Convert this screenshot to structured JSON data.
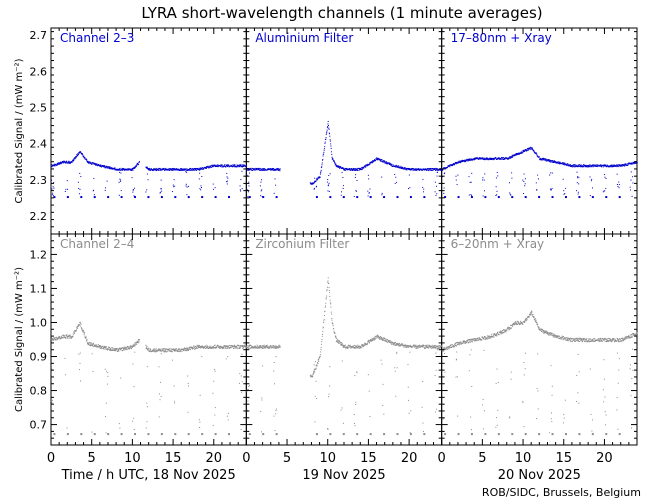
{
  "title": "LYRA short-wavelength channels (1 minute averages)",
  "credit": "ROB/SIDC, Brussels, Belgium",
  "ylabel": "Calibrated Signal / (mW m⁻²)",
  "colors": {
    "top": "#0000cc",
    "bottom": "#8c8c8c",
    "axis": "#000000"
  },
  "x_ticks": [
    "0",
    "5",
    "10",
    "15",
    "20"
  ],
  "day_labels": [
    "Time / h UTC, 18 Nov 2025",
    "19 Nov 2025",
    "20 Nov 2025"
  ],
  "top_row": {
    "ylim": [
      2.15,
      2.72
    ],
    "yticks": [
      "2.2",
      "2.3",
      "2.4",
      "2.5",
      "2.6",
      "2.7"
    ]
  },
  "bottom_row": {
    "ylim": [
      0.64,
      1.26
    ],
    "yticks": [
      "0.7",
      "0.8",
      "0.9",
      "1.0",
      "1.1",
      "1.2"
    ]
  },
  "panel_titles": [
    "Channel 2–3",
    "Aluminium Filter",
    "17–80nm + Xray",
    "Channel 2–4",
    "Zirconium Filter",
    "6–20nm + Xray"
  ],
  "chart_data": [
    {
      "type": "scatter",
      "title": "LYRA short-wavelength channels (1 minute averages)",
      "ylabel": "Calibrated Signal / (mW m⁻²)",
      "xlabel": "Time / h UTC, 18 Nov 2025",
      "xlim": [
        0,
        72
      ],
      "ylim": [
        2.15,
        2.72
      ],
      "series": [
        {
          "name": "Channel 2–3",
          "x": [
            0,
            1.5,
            2.5,
            3.5,
            4.5,
            6,
            8,
            10,
            10.8,
            12,
            14,
            16,
            18,
            20,
            22,
            24
          ],
          "values": [
            2.34,
            2.35,
            2.35,
            2.38,
            2.35,
            2.34,
            2.33,
            2.33,
            2.35,
            2.33,
            2.33,
            2.33,
            2.33,
            2.34,
            2.34,
            2.34
          ]
        },
        {
          "name": "Aluminium Filter",
          "x": [
            24,
            26,
            28,
            32,
            33,
            34,
            34.5,
            35,
            36,
            38,
            40,
            42,
            44,
            46,
            48
          ],
          "values": [
            2.33,
            2.33,
            2.33,
            2.29,
            2.31,
            2.46,
            2.36,
            2.34,
            2.33,
            2.33,
            2.36,
            2.34,
            2.33,
            2.33,
            2.33
          ]
        },
        {
          "name": "17–80nm + Xray",
          "x": [
            48,
            50,
            52,
            54,
            56,
            57,
            58,
            59,
            60,
            62,
            64,
            66,
            68,
            70,
            72
          ],
          "values": [
            2.33,
            2.35,
            2.36,
            2.36,
            2.36,
            2.37,
            2.38,
            2.39,
            2.36,
            2.35,
            2.34,
            2.34,
            2.34,
            2.34,
            2.35
          ]
        }
      ]
    },
    {
      "type": "scatter",
      "ylabel": "Calibrated Signal / (mW m⁻²)",
      "xlabel": "Time / h UTC, 18 Nov 2025",
      "xlim": [
        0,
        72
      ],
      "ylim": [
        0.64,
        1.26
      ],
      "series": [
        {
          "name": "Channel 2–4",
          "x": [
            0,
            1.5,
            2.5,
            3.5,
            4.5,
            6,
            8,
            10,
            10.8,
            12,
            14,
            16,
            18,
            20,
            22,
            24
          ],
          "values": [
            0.95,
            0.96,
            0.96,
            1.0,
            0.94,
            0.93,
            0.92,
            0.93,
            0.95,
            0.92,
            0.92,
            0.92,
            0.93,
            0.93,
            0.93,
            0.93
          ]
        },
        {
          "name": "Zirconium Filter",
          "x": [
            24,
            26,
            28,
            32,
            33,
            34,
            34.5,
            35,
            36,
            38,
            40,
            42,
            44,
            46,
            48
          ],
          "values": [
            0.93,
            0.93,
            0.93,
            0.84,
            0.9,
            1.13,
            1.0,
            0.95,
            0.93,
            0.93,
            0.96,
            0.94,
            0.93,
            0.93,
            0.93
          ]
        },
        {
          "name": "6–20nm + Xray",
          "x": [
            48,
            50,
            52,
            54,
            56,
            57,
            58,
            59,
            60,
            62,
            64,
            66,
            68,
            70,
            72
          ],
          "values": [
            0.92,
            0.94,
            0.95,
            0.96,
            0.98,
            1.0,
            1.0,
            1.03,
            0.98,
            0.96,
            0.95,
            0.95,
            0.95,
            0.95,
            0.97
          ]
        }
      ]
    }
  ]
}
